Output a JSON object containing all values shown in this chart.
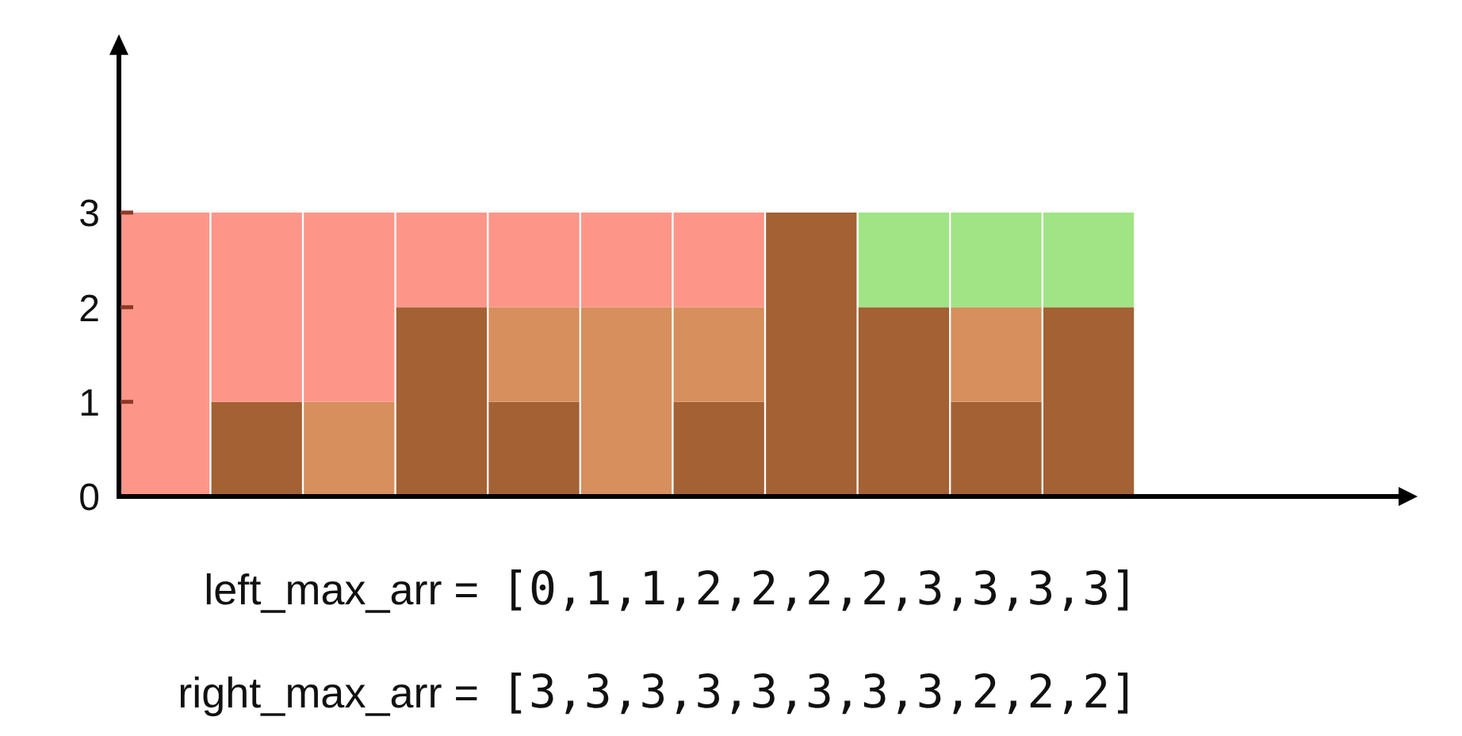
{
  "chart_data": {
    "type": "bar",
    "stacked": true,
    "categories": [
      null,
      null,
      null,
      null,
      null,
      null,
      null,
      null,
      null,
      null,
      null,
      null,
      null,
      null
    ],
    "series": [
      {
        "color": "#a36134",
        "values": [
          0,
          1,
          0,
          2,
          1,
          0,
          1,
          3,
          2,
          1,
          2,
          null,
          null,
          null
        ]
      },
      {
        "color": "#d68f5d",
        "values": [
          null,
          null,
          1,
          null,
          1,
          2,
          1,
          null,
          null,
          1,
          null,
          null,
          null,
          null
        ]
      },
      {
        "color": "#fd9689",
        "values": [
          3,
          2,
          2,
          1,
          1,
          1,
          1,
          null,
          null,
          null,
          null,
          null,
          null,
          null
        ]
      },
      {
        "color": "#a0e486",
        "values": [
          null,
          null,
          null,
          null,
          null,
          null,
          null,
          null,
          1,
          1,
          1,
          null,
          null,
          null
        ]
      }
    ],
    "ylim": [
      0,
      4.7
    ],
    "yticks": [
      0,
      1,
      2,
      3
    ],
    "annotations": [
      "left_max_arr = [0,1,1,2,2,2,2,3,3,3,3]",
      "right_max_arr = [3,3,3,3,3,3,3,3,2,2,2]"
    ]
  }
}
